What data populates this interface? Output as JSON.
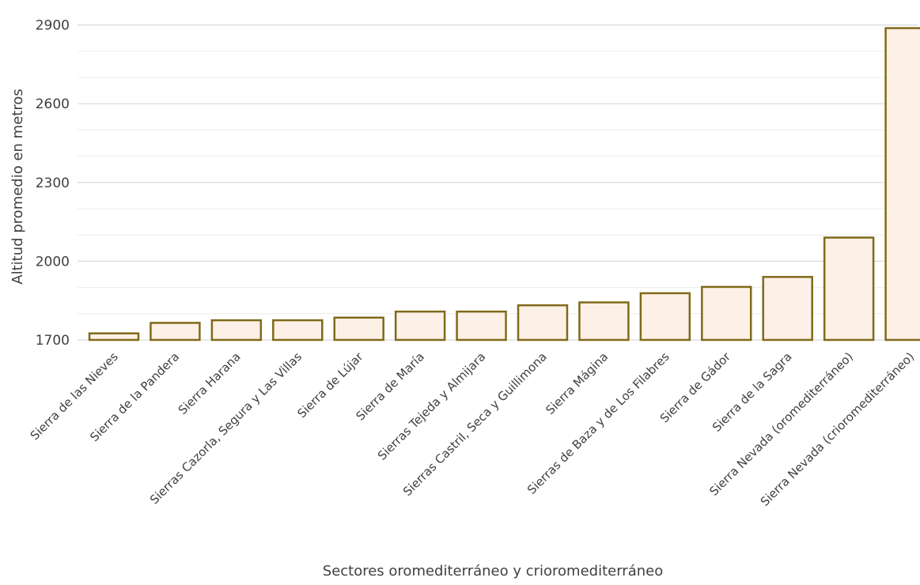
{
  "chart_data": {
    "type": "bar",
    "title": "",
    "xlabel": "Sectores oromediterráneo y crioromediterráneo",
    "ylabel": "Altitud promedio en metros",
    "ylim": [
      1700,
      2950
    ],
    "yticks": [
      1700,
      2000,
      2300,
      2600,
      2900
    ],
    "minor_step": 100,
    "grid": true,
    "legend": "none",
    "categories": [
      "Sierra de las Nieves",
      "Sierra de la Pandera",
      "Sierra Harana",
      "Sierras Cazorla, Segura y Las Villas",
      "Sierra de Lújar",
      "Sierra de María",
      "Sierras Tejeda y Almijara",
      "Sierras Castril, Seca y Guillimona",
      "Sierra Mágina",
      "Sierras de Baza y de Los Filabres",
      "Sierra de Gádor",
      "Sierra de la Sagra",
      "Sierra Nevada (oromediterráneo)",
      "Sierra Nevada (crioromediterráneo)"
    ],
    "values": [
      1725,
      1765,
      1775,
      1775,
      1785,
      1808,
      1808,
      1832,
      1843,
      1878,
      1902,
      1940,
      2090,
      2888
    ],
    "colors": {
      "bar_fill": "#fdf0e6",
      "bar_stroke": "#7f6a1a"
    }
  }
}
